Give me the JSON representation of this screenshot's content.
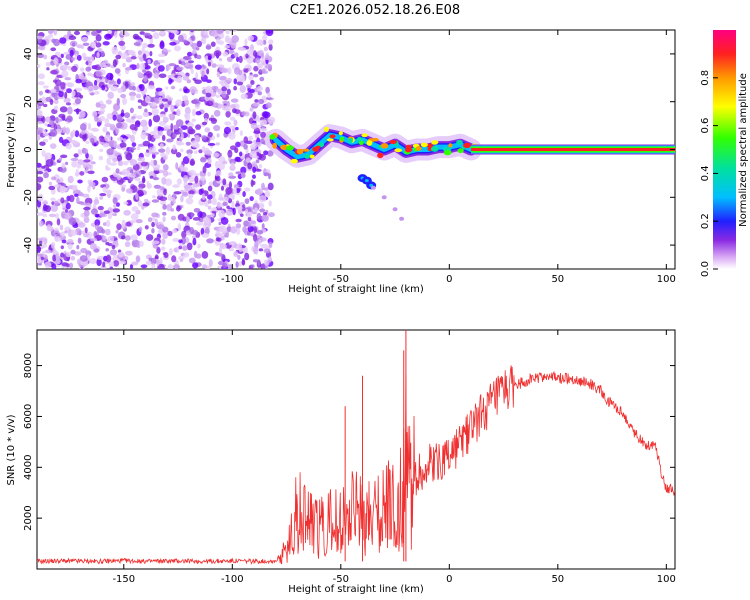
{
  "title": "C2E1.2026.052.18.26.E08",
  "colors": {
    "snr_line": "#f03030",
    "axis": "#000000",
    "background": "#ffffff",
    "scatter": "#8a2be2"
  },
  "chart_data": [
    {
      "type": "heatmap",
      "name": "spectrogram",
      "xlabel": "Height of straight line (km)",
      "ylabel": "Frequency (Hz)",
      "xlim": [
        -190,
        104
      ],
      "ylim": [
        -50,
        50
      ],
      "xticks": [
        "-150",
        "-100",
        "-50",
        "0",
        "50",
        "100"
      ],
      "xtick_values": [
        -150,
        -100,
        -50,
        0,
        50,
        100
      ],
      "yticks": [
        "-40",
        "-20",
        "0",
        "20",
        "40"
      ],
      "ytick_values": [
        -40,
        -20,
        0,
        20,
        40
      ],
      "noise_region_km": [
        -190,
        -82
      ],
      "echo_band": [
        {
          "x": -80,
          "y": 4
        },
        {
          "x": -75,
          "y": 0
        },
        {
          "x": -70,
          "y": -3
        },
        {
          "x": -65,
          "y": -2
        },
        {
          "x": -60,
          "y": 2
        },
        {
          "x": -55,
          "y": 6
        },
        {
          "x": -50,
          "y": 5
        },
        {
          "x": -45,
          "y": 3
        },
        {
          "x": -40,
          "y": 4
        },
        {
          "x": -35,
          "y": 2
        },
        {
          "x": -30,
          "y": 0
        },
        {
          "x": -25,
          "y": 2
        },
        {
          "x": -20,
          "y": -1
        },
        {
          "x": -15,
          "y": 0
        },
        {
          "x": -10,
          "y": 0
        },
        {
          "x": -5,
          "y": 1
        },
        {
          "x": 0,
          "y": 1
        },
        {
          "x": 5,
          "y": 2
        },
        {
          "x": 10,
          "y": 0
        }
      ],
      "echo_line": {
        "x_start": 10,
        "x_end": 104,
        "y": 0
      },
      "secondary_echo": [
        {
          "x": -40,
          "y": -12
        },
        {
          "x": -38,
          "y": -13
        },
        {
          "x": -36,
          "y": -15
        },
        {
          "x": -35,
          "y": -16
        },
        {
          "x": -30,
          "y": -20
        },
        {
          "x": -25,
          "y": -25
        },
        {
          "x": -22,
          "y": -29
        }
      ]
    },
    {
      "type": "line",
      "name": "snr",
      "xlabel": "Height of straight line (km)",
      "ylabel": "SNR (10 * v/v)",
      "xlim": [
        -190,
        104
      ],
      "ylim": [
        0,
        9400
      ],
      "xticks": [
        "-150",
        "-100",
        "-50",
        "0",
        "50",
        "100"
      ],
      "xtick_values": [
        -150,
        -100,
        -50,
        0,
        50,
        100
      ],
      "yticks": [
        "2000",
        "4000",
        "6000",
        "8000"
      ],
      "ytick_values": [
        2000,
        4000,
        6000,
        8000
      ],
      "x": [
        -190,
        -180,
        -170,
        -160,
        -150,
        -140,
        -130,
        -120,
        -110,
        -100,
        -90,
        -80,
        -75,
        -70,
        -65,
        -60,
        -55,
        -50,
        -45,
        -40,
        -35,
        -30,
        -25,
        -22,
        -20,
        -18,
        -15,
        -10,
        -5,
        0,
        5,
        10,
        15,
        20,
        25,
        30,
        35,
        40,
        45,
        50,
        55,
        60,
        65,
        70,
        72,
        75,
        80,
        85,
        90,
        95,
        98,
        100,
        104
      ],
      "values": [
        300,
        320,
        310,
        300,
        330,
        300,
        320,
        310,
        300,
        320,
        300,
        320,
        800,
        2400,
        2000,
        1700,
        2100,
        1900,
        2300,
        2200,
        2100,
        2600,
        2500,
        3000,
        4600,
        3400,
        3800,
        4000,
        4300,
        4500,
        4900,
        5600,
        6100,
        6500,
        6900,
        7200,
        7400,
        7500,
        7600,
        7500,
        7500,
        7400,
        7300,
        7000,
        6600,
        6500,
        6100,
        5400,
        4900,
        4900,
        3700,
        3200,
        3100
      ],
      "spikes": [
        {
          "x": -40,
          "value": 7600
        },
        {
          "x": -48,
          "value": 6400
        },
        {
          "x": -20,
          "value": 9400
        },
        {
          "x": -21,
          "value": 8600
        }
      ]
    }
  ],
  "colorbar": {
    "label": "Normalized spectral amplitude",
    "ticks": [
      "0.0",
      "0.2",
      "0.4",
      "0.6",
      "0.8"
    ],
    "tick_values": [
      0.0,
      0.2,
      0.4,
      0.6,
      0.8
    ],
    "range": [
      0,
      1
    ]
  }
}
